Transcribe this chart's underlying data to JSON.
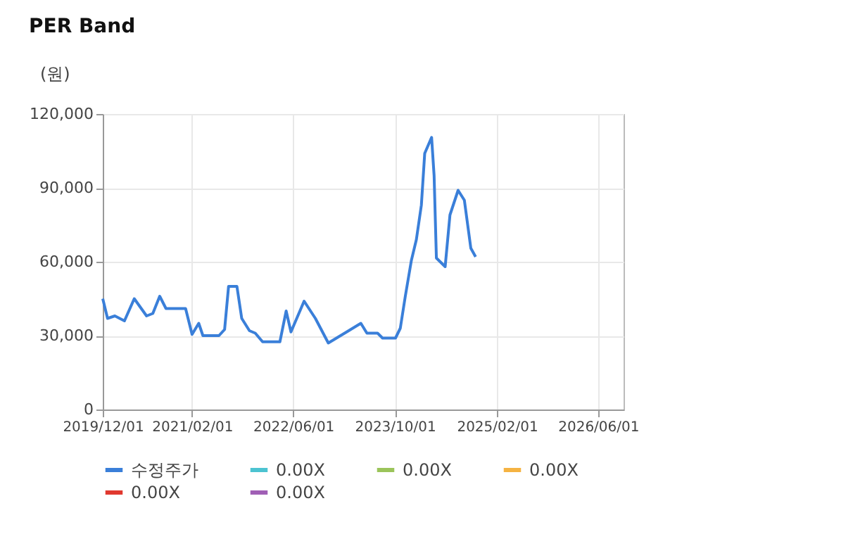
{
  "chart_data": {
    "type": "line",
    "title": "PER Band",
    "ylabel": "(원)",
    "x": [
      "2019-12-01",
      "2019-12-24",
      "2020-01-28",
      "2020-03-14",
      "2020-04-30",
      "2020-06-28",
      "2020-07-28",
      "2020-08-30",
      "2020-09-29",
      "2021-01-01",
      "2021-02-01",
      "2021-03-05",
      "2021-03-25",
      "2021-06-10",
      "2021-07-07",
      "2021-07-26",
      "2021-09-04",
      "2021-09-27",
      "2021-11-03",
      "2021-12-01",
      "2022-01-05",
      "2022-03-29",
      "2022-04-28",
      "2022-05-21",
      "2022-07-23",
      "2022-09-15",
      "2022-11-16",
      "2023-02-12",
      "2023-04-21",
      "2023-05-20",
      "2023-07-10",
      "2023-08-03",
      "2023-10-04",
      "2023-10-27",
      "2023-11-20",
      "2023-12-19",
      "2024-01-12",
      "2024-02-05",
      "2024-02-21",
      "2024-03-25",
      "2024-04-06",
      "2024-04-17",
      "2024-05-29",
      "2024-06-21",
      "2024-07-30",
      "2024-08-29",
      "2024-09-29",
      "2024-10-22"
    ],
    "series": [
      {
        "name": "수정주가",
        "color": "#3a7fd9",
        "values": [
          45000,
          37000,
          38000,
          36000,
          45000,
          38000,
          39000,
          46000,
          41000,
          41000,
          30500,
          35000,
          30000,
          30000,
          32500,
          50000,
          50000,
          37000,
          32000,
          31000,
          27500,
          27500,
          40000,
          31500,
          44000,
          37000,
          27000,
          31500,
          35000,
          31000,
          31000,
          29000,
          29000,
          33000,
          46000,
          60500,
          69000,
          83000,
          104000,
          110500,
          95000,
          61500,
          58000,
          79000,
          89000,
          85000,
          65500,
          62000
        ]
      },
      {
        "name": "0.00X",
        "color": "#4cc3d1",
        "values": [
          null,
          null,
          null,
          null,
          null,
          null,
          null,
          null,
          null,
          null,
          null,
          null,
          null,
          null,
          null,
          null,
          null,
          null,
          null,
          null,
          null,
          null,
          null,
          null,
          null,
          null,
          null,
          null,
          null,
          null,
          null,
          null,
          null,
          null,
          null,
          null,
          null,
          null,
          null,
          null,
          null,
          null,
          null,
          null,
          null,
          null,
          null,
          null
        ]
      },
      {
        "name": "0.00X",
        "color": "#9bc45a",
        "values": [
          null,
          null,
          null,
          null,
          null,
          null,
          null,
          null,
          null,
          null,
          null,
          null,
          null,
          null,
          null,
          null,
          null,
          null,
          null,
          null,
          null,
          null,
          null,
          null,
          null,
          null,
          null,
          null,
          null,
          null,
          null,
          null,
          null,
          null,
          null,
          null,
          null,
          null,
          null,
          null,
          null,
          null,
          null,
          null,
          null,
          null,
          null,
          null
        ]
      },
      {
        "name": "0.00X",
        "color": "#f5b342",
        "values": [
          null,
          null,
          null,
          null,
          null,
          null,
          null,
          null,
          null,
          null,
          null,
          null,
          null,
          null,
          null,
          null,
          null,
          null,
          null,
          null,
          null,
          null,
          null,
          null,
          null,
          null,
          null,
          null,
          null,
          null,
          null,
          null,
          null,
          null,
          null,
          null,
          null,
          null,
          null,
          null,
          null,
          null,
          null,
          null,
          null,
          null,
          null,
          null
        ]
      },
      {
        "name": "0.00X",
        "color": "#e0392f",
        "values": [
          null,
          null,
          null,
          null,
          null,
          null,
          null,
          null,
          null,
          null,
          null,
          null,
          null,
          null,
          null,
          null,
          null,
          null,
          null,
          null,
          null,
          null,
          null,
          null,
          null,
          null,
          null,
          null,
          null,
          null,
          null,
          null,
          null,
          null,
          null,
          null,
          null,
          null,
          null,
          null,
          null,
          null,
          null,
          null,
          null,
          null,
          null,
          null
        ]
      },
      {
        "name": "0.00X",
        "color": "#a05fb5",
        "values": [
          null,
          null,
          null,
          null,
          null,
          null,
          null,
          null,
          null,
          null,
          null,
          null,
          null,
          null,
          null,
          null,
          null,
          null,
          null,
          null,
          null,
          null,
          null,
          null,
          null,
          null,
          null,
          null,
          null,
          null,
          null,
          null,
          null,
          null,
          null,
          null,
          null,
          null,
          null,
          null,
          null,
          null,
          null,
          null,
          null,
          null,
          null,
          null
        ]
      }
    ],
    "xlim": [
      "2019-12-01",
      "2026-10-01"
    ],
    "xticks": [
      {
        "value": "2019-12-01",
        "label": "2019/12/01"
      },
      {
        "value": "2021-02-01",
        "label": "2021/02/01"
      },
      {
        "value": "2022-06-01",
        "label": "2022/06/01"
      },
      {
        "value": "2023-10-01",
        "label": "2023/10/01"
      },
      {
        "value": "2025-02-01",
        "label": "2025/02/01"
      },
      {
        "value": "2026-06-01",
        "label": "2026/06/01"
      }
    ],
    "ylim": [
      0,
      120000
    ],
    "yticks": [
      0,
      {
        "value": 30000,
        "label": "30,000"
      },
      {
        "value": 60000,
        "label": "60,000"
      },
      {
        "value": 90000,
        "label": "90,000"
      },
      {
        "value": 120000,
        "label": "120,000"
      }
    ],
    "grid": true,
    "legend": "bottom",
    "marker": "none",
    "line_style": "solid"
  }
}
